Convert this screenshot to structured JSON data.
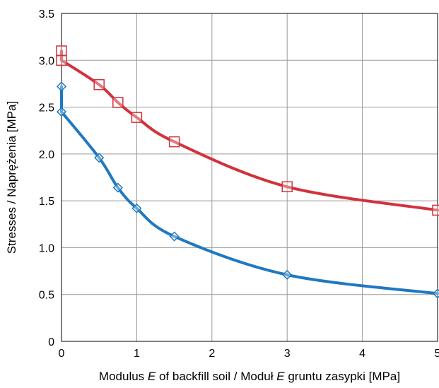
{
  "chart_data": {
    "type": "line",
    "title": "",
    "xlabel": {
      "parts": [
        "Modulus ",
        "E",
        " of backfill soil / Moduł ",
        "E",
        " gruntu zasypki [MPa]"
      ]
    },
    "ylabel": "Stresses / Naprężenia [MPa]",
    "xlim": [
      0,
      5
    ],
    "ylim": [
      0,
      3.5
    ],
    "x_ticks": [
      "0",
      "1",
      "2",
      "3",
      "4",
      "5"
    ],
    "y_ticks": [
      "0",
      "0.5",
      "1.0",
      "1.5",
      "2.0",
      "2.5",
      "3.0",
      "3.5"
    ],
    "grid": true,
    "legend": "none",
    "series": [
      {
        "color": "#d2323c",
        "marker": "square",
        "x": [
          0,
          0,
          0.5,
          0.75,
          1,
          1.5,
          3,
          5
        ],
        "y": [
          3.1,
          3.0,
          2.74,
          2.55,
          2.39,
          2.13,
          1.65,
          1.4
        ]
      },
      {
        "color": "#1f78c1",
        "marker": "diamond",
        "x": [
          0,
          0,
          0.5,
          0.75,
          1,
          1.5,
          3,
          5
        ],
        "y": [
          2.72,
          2.45,
          1.96,
          1.64,
          1.42,
          1.12,
          0.71,
          0.51
        ]
      }
    ]
  }
}
